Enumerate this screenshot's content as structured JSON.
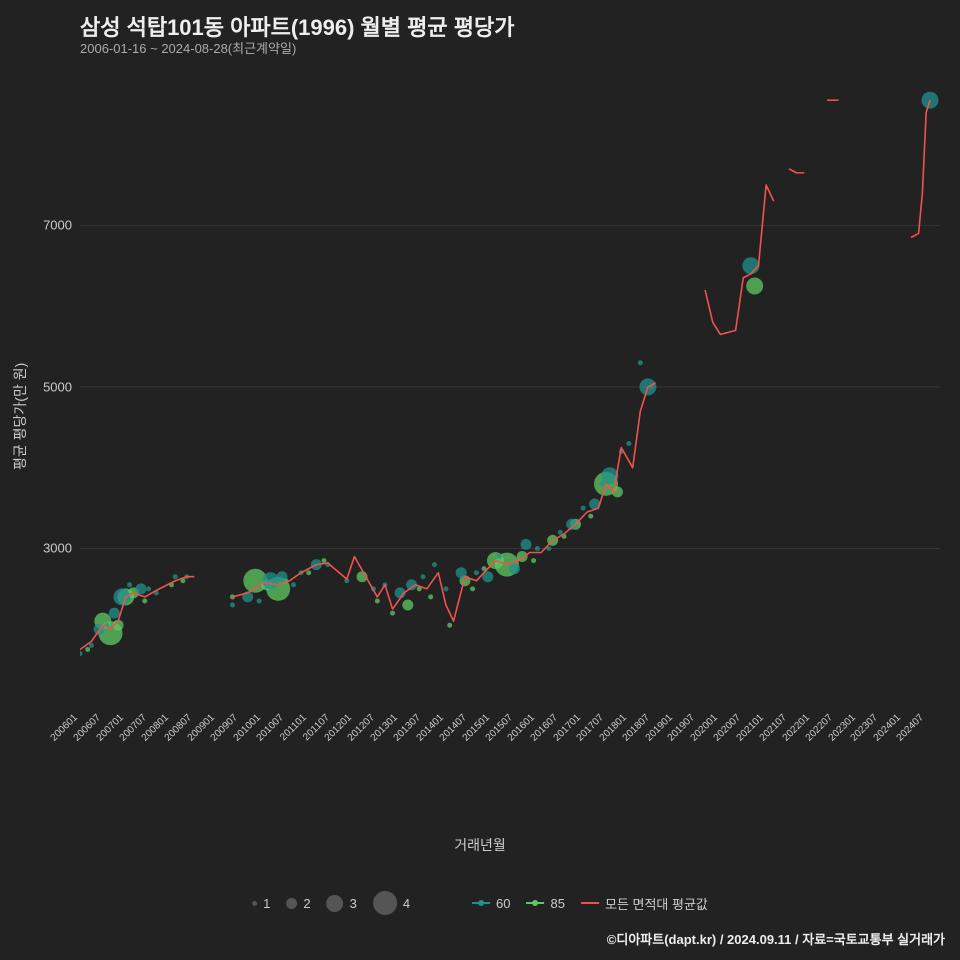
{
  "title": "삼성 석탑101동 아파트(1996) 월별 평균 평당가",
  "subtitle": "2006-01-16 ~ 2024-08-28(최근계약일)",
  "ylabel": "평균 평당가(만 원)",
  "xlabel": "거래년월",
  "footer": "©디아파트(dapt.kr) / 2024.09.11 / 자료=국토교통부 실거래가",
  "chart": {
    "type": "scatter+line",
    "background": "#222222",
    "grid_color": "#555555",
    "text_color": "#cccccc",
    "ylim": [
      1000,
      8800
    ],
    "yticks": [
      3000,
      5000,
      7000
    ],
    "xlim": [
      0,
      223
    ],
    "xtick_labels": [
      "200601",
      "200607",
      "200701",
      "200707",
      "200801",
      "200807",
      "200901",
      "200907",
      "201001",
      "201007",
      "201101",
      "201107",
      "201201",
      "201207",
      "201301",
      "201307",
      "201401",
      "201407",
      "201501",
      "201507",
      "201601",
      "201607",
      "201701",
      "201707",
      "201801",
      "201807",
      "201901",
      "201907",
      "202001",
      "202007",
      "202101",
      "202107",
      "202201",
      "202207",
      "202301",
      "202307",
      "202401",
      "202407"
    ],
    "xtick_positions": [
      0,
      6,
      12,
      18,
      24,
      30,
      36,
      42,
      48,
      54,
      60,
      66,
      72,
      78,
      84,
      90,
      96,
      102,
      108,
      114,
      120,
      126,
      132,
      138,
      144,
      150,
      156,
      162,
      168,
      174,
      180,
      186,
      192,
      198,
      204,
      210,
      216,
      222
    ],
    "series": {
      "60": {
        "color": "#21918c"
      },
      "85": {
        "color": "#5ec962"
      },
      "line": {
        "color": "#f0534f",
        "width": 1.6
      }
    },
    "size_scale": [
      5,
      11,
      17,
      24
    ],
    "legend_sizes": [
      "1",
      "2",
      "3",
      "4"
    ],
    "legend_series": {
      "s60": "60",
      "s85": "85",
      "line": "모든 면적대 평균값"
    },
    "points_60": [
      {
        "x": 0,
        "y": 1700,
        "s": 1
      },
      {
        "x": 3,
        "y": 1800,
        "s": 1
      },
      {
        "x": 5,
        "y": 2000,
        "s": 2
      },
      {
        "x": 7,
        "y": 2050,
        "s": 1
      },
      {
        "x": 9,
        "y": 2200,
        "s": 2
      },
      {
        "x": 11,
        "y": 2400,
        "s": 3
      },
      {
        "x": 13,
        "y": 2550,
        "s": 1
      },
      {
        "x": 16,
        "y": 2500,
        "s": 2
      },
      {
        "x": 18,
        "y": 2500,
        "s": 1
      },
      {
        "x": 20,
        "y": 2450,
        "s": 1
      },
      {
        "x": 25,
        "y": 2650,
        "s": 1
      },
      {
        "x": 28,
        "y": 2650,
        "s": 1
      },
      {
        "x": 40,
        "y": 2300,
        "s": 1
      },
      {
        "x": 44,
        "y": 2400,
        "s": 2
      },
      {
        "x": 47,
        "y": 2350,
        "s": 1
      },
      {
        "x": 50,
        "y": 2600,
        "s": 3
      },
      {
        "x": 53,
        "y": 2650,
        "s": 2
      },
      {
        "x": 56,
        "y": 2550,
        "s": 1
      },
      {
        "x": 58,
        "y": 2700,
        "s": 1
      },
      {
        "x": 62,
        "y": 2800,
        "s": 2
      },
      {
        "x": 65,
        "y": 2800,
        "s": 1
      },
      {
        "x": 70,
        "y": 2600,
        "s": 1
      },
      {
        "x": 77,
        "y": 2500,
        "s": 1
      },
      {
        "x": 80,
        "y": 2550,
        "s": 1
      },
      {
        "x": 84,
        "y": 2450,
        "s": 2
      },
      {
        "x": 87,
        "y": 2550,
        "s": 2
      },
      {
        "x": 90,
        "y": 2650,
        "s": 1
      },
      {
        "x": 93,
        "y": 2800,
        "s": 1
      },
      {
        "x": 96,
        "y": 2500,
        "s": 1
      },
      {
        "x": 100,
        "y": 2700,
        "s": 2
      },
      {
        "x": 104,
        "y": 2700,
        "s": 1
      },
      {
        "x": 107,
        "y": 2650,
        "s": 2
      },
      {
        "x": 110,
        "y": 2900,
        "s": 1
      },
      {
        "x": 114,
        "y": 2750,
        "s": 2
      },
      {
        "x": 117,
        "y": 3050,
        "s": 2
      },
      {
        "x": 120,
        "y": 3000,
        "s": 1
      },
      {
        "x": 123,
        "y": 3000,
        "s": 1
      },
      {
        "x": 126,
        "y": 3200,
        "s": 1
      },
      {
        "x": 129,
        "y": 3300,
        "s": 2
      },
      {
        "x": 132,
        "y": 3500,
        "s": 1
      },
      {
        "x": 135,
        "y": 3550,
        "s": 2
      },
      {
        "x": 137,
        "y": 3800,
        "s": 1
      },
      {
        "x": 139,
        "y": 3900,
        "s": 3
      },
      {
        "x": 142,
        "y": 4200,
        "s": 1
      },
      {
        "x": 144,
        "y": 4300,
        "s": 1
      },
      {
        "x": 147,
        "y": 5300,
        "s": 1
      },
      {
        "x": 149,
        "y": 5000,
        "s": 3
      },
      {
        "x": 150,
        "y": 5000,
        "s": 1
      },
      {
        "x": 176,
        "y": 6500,
        "s": 3
      },
      {
        "x": 223,
        "y": 8550,
        "s": 3
      }
    ],
    "points_85": [
      {
        "x": 2,
        "y": 1750,
        "s": 1
      },
      {
        "x": 6,
        "y": 2100,
        "s": 3
      },
      {
        "x": 8,
        "y": 1950,
        "s": 4
      },
      {
        "x": 10,
        "y": 2050,
        "s": 2
      },
      {
        "x": 12,
        "y": 2400,
        "s": 3
      },
      {
        "x": 14,
        "y": 2450,
        "s": 2
      },
      {
        "x": 17,
        "y": 2350,
        "s": 1
      },
      {
        "x": 24,
        "y": 2550,
        "s": 1
      },
      {
        "x": 27,
        "y": 2600,
        "s": 1
      },
      {
        "x": 40,
        "y": 2400,
        "s": 1
      },
      {
        "x": 46,
        "y": 2600,
        "s": 4
      },
      {
        "x": 49,
        "y": 2550,
        "s": 2
      },
      {
        "x": 52,
        "y": 2500,
        "s": 4
      },
      {
        "x": 54,
        "y": 2600,
        "s": 1
      },
      {
        "x": 60,
        "y": 2700,
        "s": 1
      },
      {
        "x": 64,
        "y": 2850,
        "s": 1
      },
      {
        "x": 74,
        "y": 2650,
        "s": 2
      },
      {
        "x": 78,
        "y": 2350,
        "s": 1
      },
      {
        "x": 82,
        "y": 2200,
        "s": 1
      },
      {
        "x": 86,
        "y": 2300,
        "s": 2
      },
      {
        "x": 89,
        "y": 2500,
        "s": 1
      },
      {
        "x": 92,
        "y": 2400,
        "s": 1
      },
      {
        "x": 97,
        "y": 2050,
        "s": 1
      },
      {
        "x": 101,
        "y": 2600,
        "s": 2
      },
      {
        "x": 103,
        "y": 2500,
        "s": 1
      },
      {
        "x": 106,
        "y": 2750,
        "s": 1
      },
      {
        "x": 109,
        "y": 2850,
        "s": 3
      },
      {
        "x": 112,
        "y": 2800,
        "s": 4
      },
      {
        "x": 116,
        "y": 2900,
        "s": 2
      },
      {
        "x": 119,
        "y": 2850,
        "s": 1
      },
      {
        "x": 124,
        "y": 3100,
        "s": 2
      },
      {
        "x": 127,
        "y": 3150,
        "s": 1
      },
      {
        "x": 130,
        "y": 3300,
        "s": 2
      },
      {
        "x": 134,
        "y": 3400,
        "s": 1
      },
      {
        "x": 138,
        "y": 3800,
        "s": 4
      },
      {
        "x": 141,
        "y": 3700,
        "s": 2
      },
      {
        "x": 177,
        "y": 6250,
        "s": 3
      }
    ],
    "line_data": [
      {
        "x": 0,
        "y": 1750
      },
      {
        "x": 3,
        "y": 1850
      },
      {
        "x": 6,
        "y": 2050
      },
      {
        "x": 8,
        "y": 2000
      },
      {
        "x": 10,
        "y": 2100
      },
      {
        "x": 12,
        "y": 2400
      },
      {
        "x": 14,
        "y": 2450
      },
      {
        "x": 17,
        "y": 2400
      },
      {
        "x": 20,
        "y": 2480
      },
      {
        "x": 25,
        "y": 2600
      },
      {
        "x": 28,
        "y": 2650
      },
      {
        "x": 30,
        "y": 2650
      }
    ],
    "line_data_2": [
      {
        "x": 40,
        "y": 2400
      },
      {
        "x": 44,
        "y": 2450
      },
      {
        "x": 48,
        "y": 2580
      },
      {
        "x": 52,
        "y": 2550
      },
      {
        "x": 55,
        "y": 2600
      },
      {
        "x": 58,
        "y": 2700
      },
      {
        "x": 62,
        "y": 2800
      },
      {
        "x": 65,
        "y": 2820
      },
      {
        "x": 70,
        "y": 2620
      },
      {
        "x": 72,
        "y": 2900
      },
      {
        "x": 75,
        "y": 2650
      },
      {
        "x": 78,
        "y": 2400
      },
      {
        "x": 80,
        "y": 2550
      },
      {
        "x": 82,
        "y": 2250
      },
      {
        "x": 85,
        "y": 2450
      },
      {
        "x": 88,
        "y": 2550
      },
      {
        "x": 91,
        "y": 2500
      },
      {
        "x": 94,
        "y": 2700
      },
      {
        "x": 96,
        "y": 2300
      },
      {
        "x": 98,
        "y": 2100
      },
      {
        "x": 101,
        "y": 2650
      },
      {
        "x": 104,
        "y": 2600
      },
      {
        "x": 106,
        "y": 2700
      },
      {
        "x": 109,
        "y": 2850
      },
      {
        "x": 112,
        "y": 2800
      },
      {
        "x": 115,
        "y": 2850
      },
      {
        "x": 118,
        "y": 2950
      },
      {
        "x": 121,
        "y": 2950
      },
      {
        "x": 124,
        "y": 3100
      },
      {
        "x": 127,
        "y": 3180
      },
      {
        "x": 130,
        "y": 3300
      },
      {
        "x": 133,
        "y": 3450
      },
      {
        "x": 136,
        "y": 3500
      },
      {
        "x": 138,
        "y": 3800
      },
      {
        "x": 140,
        "y": 3700
      },
      {
        "x": 142,
        "y": 4250
      },
      {
        "x": 145,
        "y": 4000
      },
      {
        "x": 147,
        "y": 4700
      },
      {
        "x": 149,
        "y": 5000
      },
      {
        "x": 151,
        "y": 5050
      }
    ],
    "line_data_3": [
      {
        "x": 164,
        "y": 6200
      },
      {
        "x": 166,
        "y": 5800
      },
      {
        "x": 168,
        "y": 5650
      },
      {
        "x": 172,
        "y": 5700
      },
      {
        "x": 174,
        "y": 6350
      },
      {
        "x": 176,
        "y": 6400
      },
      {
        "x": 178,
        "y": 6500
      },
      {
        "x": 180,
        "y": 7500
      },
      {
        "x": 182,
        "y": 7300
      }
    ],
    "line_data_4": [
      {
        "x": 186,
        "y": 7700
      },
      {
        "x": 188,
        "y": 7650
      },
      {
        "x": 190,
        "y": 7650
      }
    ],
    "line_data_5": [
      {
        "x": 196,
        "y": 8550
      },
      {
        "x": 199,
        "y": 8550
      }
    ],
    "line_data_6": [
      {
        "x": 218,
        "y": 6850
      },
      {
        "x": 220,
        "y": 6900
      },
      {
        "x": 221,
        "y": 7400
      },
      {
        "x": 222,
        "y": 8400
      },
      {
        "x": 223,
        "y": 8550
      }
    ]
  }
}
